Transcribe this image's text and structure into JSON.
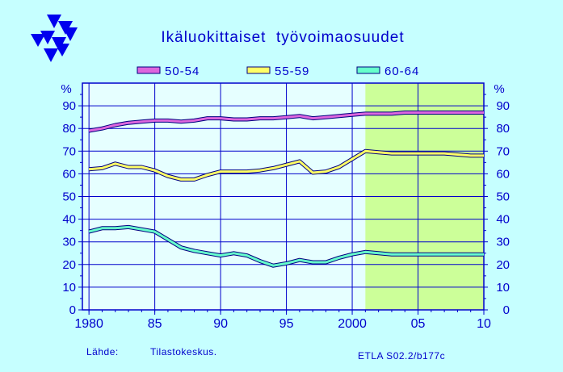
{
  "colors": {
    "background": "#c6ffff",
    "plot_bg": "#e6ffff",
    "forecast_bg": "#ccff99",
    "grid": "#0000cc",
    "text": "#0000cc",
    "logo": "#0000ee"
  },
  "logo": {
    "icon": "etla-triangles-logo"
  },
  "header": {
    "title": "Ikäluokittaiset  työvoimaosuudet"
  },
  "footer": {
    "source_label": "Lähde:",
    "source": "Tilastokeskus.",
    "code": "ETLA S02.2/b177c"
  },
  "chart_data": {
    "type": "line",
    "title": "Ikäluokittaiset  työvoimaosuudet",
    "ylabel_left": "%",
    "ylabel_right": "%",
    "xlim": [
      1979.5,
      2010
    ],
    "ylim": [
      0,
      100
    ],
    "yticks": [
      0,
      10,
      20,
      30,
      40,
      50,
      60,
      70,
      80,
      90
    ],
    "xticks": [
      {
        "value": 1980,
        "label": "1980"
      },
      {
        "value": 1985,
        "label": "85"
      },
      {
        "value": 1990,
        "label": "90"
      },
      {
        "value": 1995,
        "label": "95"
      },
      {
        "value": 2000,
        "label": "2000"
      },
      {
        "value": 2005,
        "label": "05"
      },
      {
        "value": 2010,
        "label": "10"
      }
    ],
    "forecast_start": 2001,
    "grid": true,
    "legend_position": "top",
    "series": [
      {
        "name": "50-54",
        "color": "#dd66dd",
        "x": [
          1980,
          1981,
          1982,
          1983,
          1984,
          1985,
          1986,
          1987,
          1988,
          1989,
          1990,
          1991,
          1992,
          1993,
          1994,
          1995,
          1996,
          1997,
          1998,
          1999,
          2000,
          2001,
          2002,
          2003,
          2004,
          2005,
          2006,
          2007,
          2008,
          2009,
          2010
        ],
        "values": [
          79,
          80,
          81.5,
          82.5,
          83,
          83.5,
          83.5,
          83,
          83.5,
          84.5,
          84.5,
          84,
          84,
          84.5,
          84.5,
          85,
          85.5,
          84.5,
          85,
          85.5,
          86,
          86.5,
          86.5,
          86.5,
          87,
          87,
          87,
          87,
          87,
          87,
          87
        ]
      },
      {
        "name": "55-59",
        "color": "#ffff66",
        "x": [
          1980,
          1981,
          1982,
          1983,
          1984,
          1985,
          1986,
          1987,
          1988,
          1989,
          1990,
          1991,
          1992,
          1993,
          1994,
          1995,
          1996,
          1997,
          1998,
          1999,
          2000,
          2001,
          2002,
          2003,
          2004,
          2005,
          2006,
          2007,
          2008,
          2009,
          2010
        ],
        "values": [
          62,
          62.5,
          64.5,
          63,
          63,
          61.5,
          59,
          57.5,
          57.5,
          59.5,
          61,
          61,
          61,
          61.5,
          62.5,
          64,
          65.5,
          60.5,
          61,
          63,
          66.5,
          70,
          69.5,
          69,
          69,
          69,
          69,
          69,
          68.5,
          68,
          68
        ]
      },
      {
        "name": "60-64",
        "color": "#66ffcc",
        "x": [
          1980,
          1981,
          1982,
          1983,
          1984,
          1985,
          1986,
          1987,
          1988,
          1989,
          1990,
          1991,
          1992,
          1993,
          1994,
          1995,
          1996,
          1997,
          1998,
          1999,
          2000,
          2001,
          2002,
          2003,
          2004,
          2005,
          2006,
          2007,
          2008,
          2009,
          2010
        ],
        "values": [
          34.5,
          36,
          36,
          36.5,
          35.5,
          34.5,
          31,
          27.5,
          26,
          25,
          24,
          25,
          24,
          21.5,
          19.5,
          20.5,
          22,
          21,
          21,
          23,
          24.5,
          25.5,
          25,
          24.5,
          24.5,
          24.5,
          24.5,
          24.5,
          24.5,
          24.5,
          24.5
        ]
      }
    ]
  }
}
